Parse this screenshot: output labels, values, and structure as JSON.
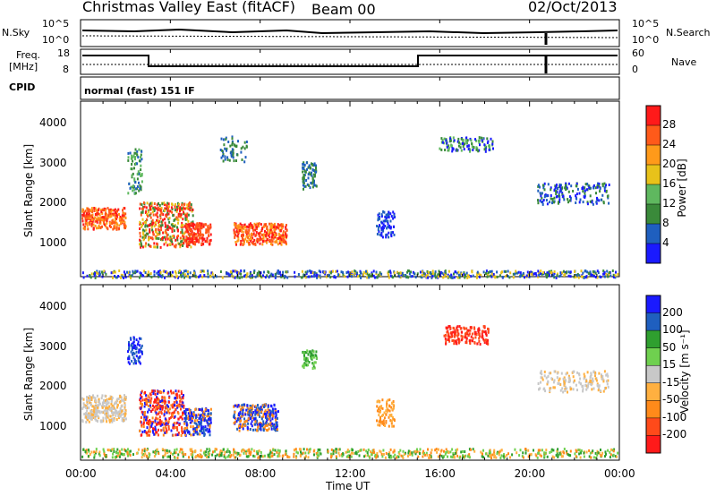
{
  "header": {
    "station": "Christmas Valley East (fitACF)",
    "beam": "Beam 00",
    "date": "02/Oct/2013"
  },
  "top_panel": {
    "left_label": "N.Sky",
    "right_label": "N.Search",
    "left_ticks": [
      "10^5",
      "10^0"
    ],
    "right_ticks": [
      "10^5",
      "10^0"
    ]
  },
  "freq_panel": {
    "left_label_1": "Freq.",
    "left_label_2": "[MHz]",
    "right_label": "Nave",
    "left_ticks": [
      "18",
      "8"
    ],
    "right_ticks": [
      "60",
      "0"
    ]
  },
  "cpid": {
    "label": "CPID",
    "value": "normal (fast) 151 IF"
  },
  "colors": {
    "power": [
      "#1a1aff",
      "#1f5fbf",
      "#3a8a3a",
      "#5fb85f",
      "#e8c21a",
      "#ff9a1a",
      "#ff5a1a",
      "#ff1a1a"
    ],
    "velocity": [
      "#1a1aff",
      "#1f5fbf",
      "#2f9f2f",
      "#6fd04f",
      "#c8c8c8",
      "#ffb040",
      "#ff8a1a",
      "#ff4a1a",
      "#ff1a1a"
    ]
  },
  "chart_data": [
    {
      "type": "heatmap",
      "name": "power",
      "xlabel": "",
      "ylabel": "Slant Range [km]",
      "ylim": [
        180,
        4500
      ],
      "xlim": [
        0,
        24
      ],
      "ytick_labels": [
        "1000",
        "2000",
        "3000",
        "4000"
      ],
      "colorbar_label": "Power [dB]",
      "colorbar_ticks": [
        "28",
        "24",
        "20",
        "16",
        "12",
        "8",
        "4"
      ],
      "clim": [
        0,
        32
      ]
    },
    {
      "type": "heatmap",
      "name": "velocity",
      "xlabel": "Time UT",
      "ylabel": "Slant Range [km]",
      "ylim": [
        180,
        4500
      ],
      "xlim": [
        0,
        24
      ],
      "ytick_labels": [
        "1000",
        "2000",
        "3000",
        "4000"
      ],
      "xtick_labels": [
        "00:00",
        "04:00",
        "08:00",
        "12:00",
        "16:00",
        "20:00",
        "00:00"
      ],
      "colorbar_label": "Velocity [m s⁻¹]",
      "colorbar_ticks": [
        "200",
        "100",
        "50",
        "15",
        "-15",
        "-50",
        "-100",
        "-200"
      ]
    }
  ]
}
